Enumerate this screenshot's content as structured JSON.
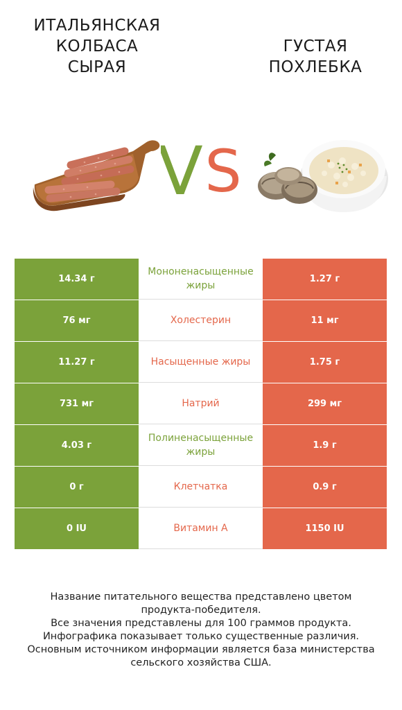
{
  "left_product": {
    "title_lines": [
      "ИТАЛЬЯНСКАЯ",
      "КОЛБАСА",
      "СЫРАЯ"
    ],
    "color": "#7ba23a"
  },
  "right_product": {
    "title_lines": [
      "ГУСТАЯ",
      "ПОХЛЕБКА"
    ],
    "color": "#e4674b"
  },
  "vs": {
    "v": "V",
    "s": "S"
  },
  "rows": [
    {
      "left": "14.34 г",
      "label": "Мононенасыщенные жиры",
      "right": "1.27 г",
      "winner": "left"
    },
    {
      "left": "76 мг",
      "label": "Холестерин",
      "right": "11 мг",
      "winner": "right"
    },
    {
      "left": "11.27 г",
      "label": "Насыщенные жиры",
      "right": "1.75 г",
      "winner": "right"
    },
    {
      "left": "731 мг",
      "label": "Натрий",
      "right": "299 мг",
      "winner": "right"
    },
    {
      "left": "4.03 г",
      "label": "Полиненасыщенные жиры",
      "right": "1.9 г",
      "winner": "left"
    },
    {
      "left": "0 г",
      "label": "Клетчатка",
      "right": "0.9 г",
      "winner": "right"
    },
    {
      "left": "0 IU",
      "label": "Витамин A",
      "right": "1150 IU",
      "winner": "right"
    }
  ],
  "footnote_lines": [
    "Название питательного вещества представлено цветом",
    "продукта-победителя.",
    "Все значения представлены для 100 граммов продукта.",
    "Инфографика показывает только существенные различия.",
    "Основным источником информации является база министерства",
    "сельского хозяйства США."
  ]
}
